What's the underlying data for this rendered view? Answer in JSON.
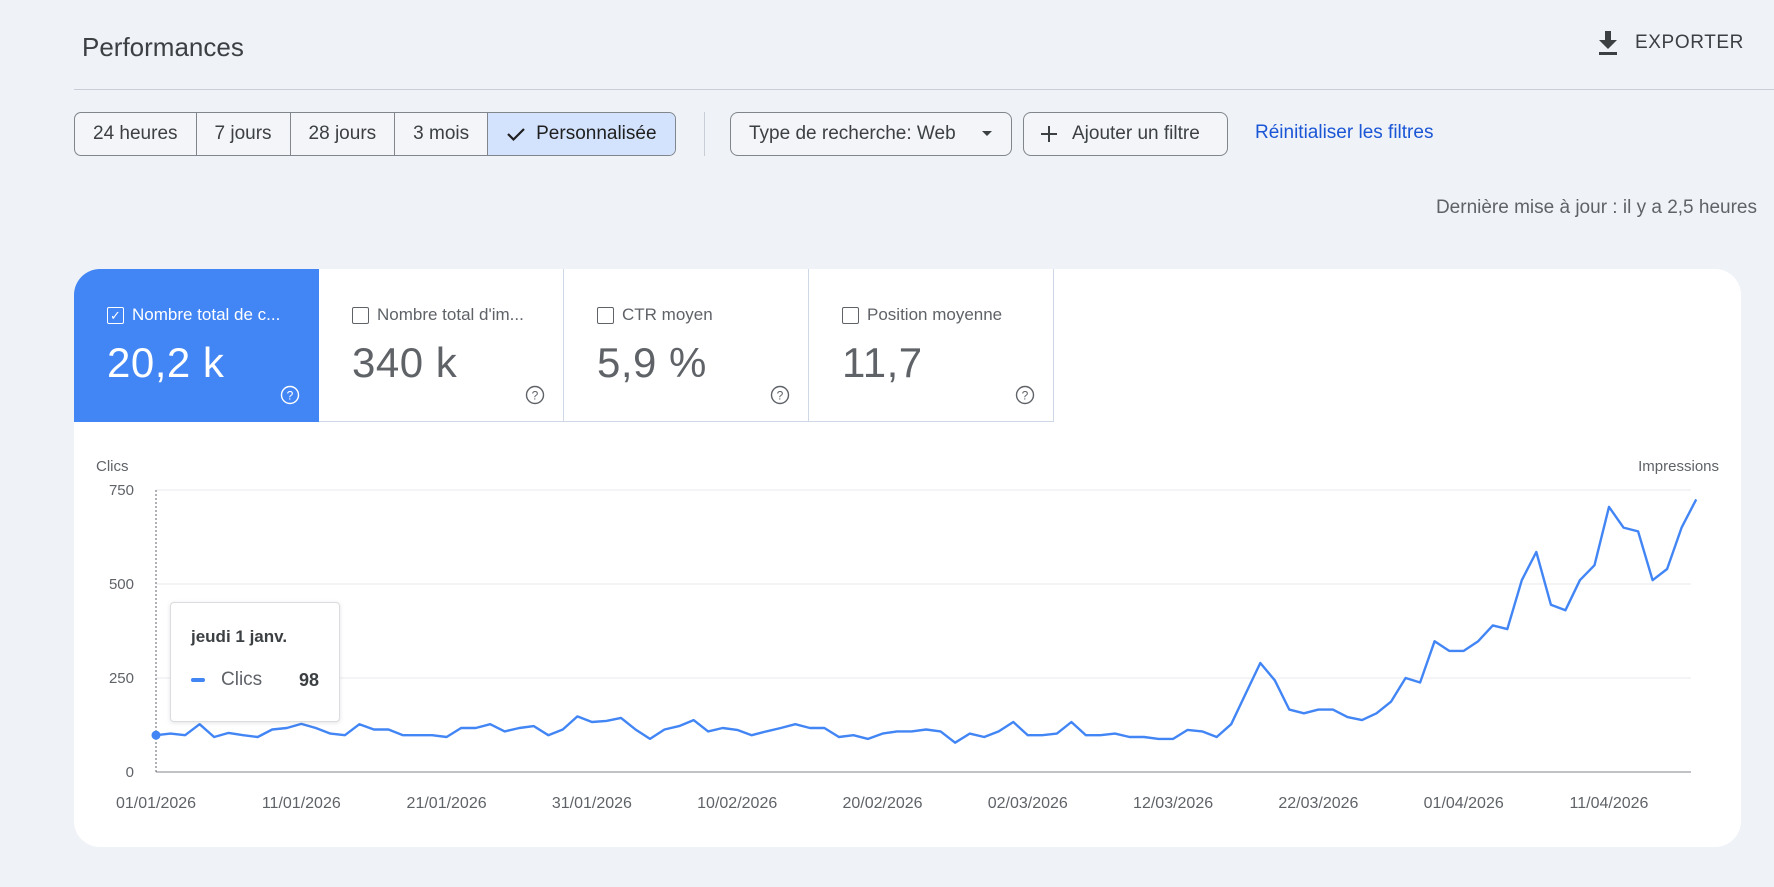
{
  "header": {
    "title": "Performances",
    "export_label": "EXPORTER"
  },
  "filters": {
    "ranges": [
      {
        "label": "24 heures",
        "selected": false
      },
      {
        "label": "7 jours",
        "selected": false
      },
      {
        "label": "28 jours",
        "selected": false
      },
      {
        "label": "3 mois",
        "selected": false
      },
      {
        "label": "Personnalisée",
        "selected": true
      }
    ],
    "search_type": "Type de recherche: Web",
    "add_filter": "Ajouter un filtre",
    "reset": "Réinitialiser les filtres"
  },
  "updated": "Dernière mise à jour : il y a 2,5 heures",
  "metrics": [
    {
      "label": "Nombre total de c...",
      "value": "20,2 k",
      "checked": true
    },
    {
      "label": "Nombre total d'im...",
      "value": "340 k",
      "checked": false
    },
    {
      "label": "CTR moyen",
      "value": "5,9 %",
      "checked": false
    },
    {
      "label": "Position moyenne",
      "value": "11,7",
      "checked": false
    }
  ],
  "tooltip": {
    "date": "jeudi 1 janv.",
    "series": "Clics",
    "value": "98"
  },
  "colors": {
    "accent": "#4285f4",
    "link": "#1a56d6",
    "background": "#eff2f7"
  },
  "chart_data": {
    "type": "line",
    "ylabel": "Clics",
    "y2label": "Impressions",
    "ylim": [
      0,
      750
    ],
    "yticks": [
      "0",
      "250",
      "500",
      "750"
    ],
    "xtick_labels": [
      "01/01/2026",
      "11/01/2026",
      "21/01/2026",
      "31/01/2026",
      "10/02/2026",
      "20/02/2026",
      "02/03/2026",
      "12/03/2026",
      "22/03/2026",
      "01/04/2026",
      "11/04/2026"
    ],
    "start_date": "01/01/2026",
    "grid": true,
    "series": [
      {
        "name": "Clics",
        "values": [
          98,
          102,
          98,
          127,
          93,
          104,
          98,
          93,
          113,
          117,
          128,
          117,
          102,
          98,
          127,
          113,
          113,
          98,
          98,
          98,
          93,
          117,
          117,
          127,
          108,
          117,
          122,
          98,
          113,
          148,
          133,
          136,
          144,
          113,
          88,
          113,
          122,
          138,
          108,
          117,
          112,
          98,
          108,
          117,
          127,
          117,
          117,
          93,
          98,
          88,
          102,
          108,
          108,
          113,
          108,
          78,
          102,
          93,
          108,
          133,
          98,
          98,
          102,
          133,
          98,
          98,
          102,
          93,
          93,
          88,
          88,
          112,
          108,
          93,
          127,
          209,
          290,
          244,
          166,
          156,
          166,
          166,
          146,
          138,
          156,
          187,
          250,
          238,
          348,
          322,
          322,
          348,
          390,
          380,
          510,
          585,
          445,
          430,
          510,
          550,
          705,
          650,
          640,
          510,
          540,
          650,
          725
        ]
      }
    ]
  }
}
